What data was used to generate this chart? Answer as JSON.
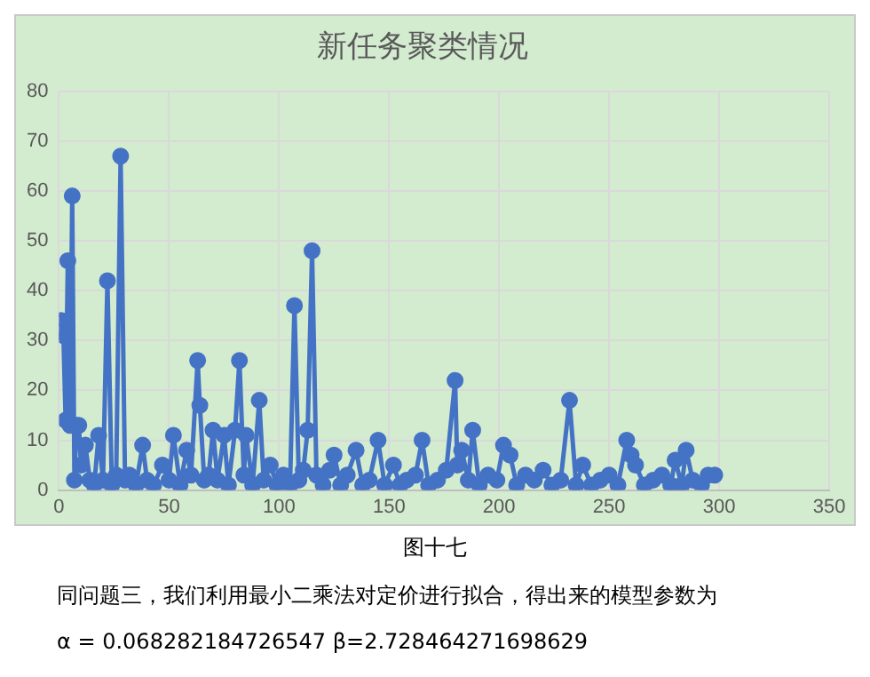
{
  "chart_data": {
    "type": "line",
    "title": "新任务聚类情况",
    "marker": "circle",
    "line_style": "solid",
    "grid": true,
    "legend": false,
    "xlim": [
      0,
      350
    ],
    "xticks": [
      0,
      50,
      100,
      150,
      200,
      250,
      300,
      350
    ],
    "ylim": [
      0,
      80
    ],
    "yticks": [
      0,
      10,
      20,
      30,
      40,
      50,
      60,
      70,
      80
    ],
    "series": [
      {
        "color": "#4472c4",
        "x": [
          1,
          2,
          3,
          4,
          5,
          6,
          7,
          8,
          9,
          10,
          12,
          14,
          16,
          18,
          20,
          22,
          24,
          26,
          28,
          30,
          32,
          35,
          38,
          40,
          43,
          47,
          50,
          52,
          55,
          58,
          60,
          63,
          64,
          66,
          68,
          70,
          72,
          75,
          77,
          80,
          82,
          84,
          85,
          88,
          91,
          93,
          96,
          99,
          102,
          105,
          107,
          109,
          111,
          113,
          115,
          117,
          120,
          123,
          125,
          128,
          131,
          135,
          138,
          141,
          145,
          148,
          152,
          155,
          158,
          162,
          165,
          168,
          172,
          176,
          180,
          181,
          183,
          186,
          188,
          191,
          195,
          199,
          202,
          205,
          208,
          212,
          216,
          220,
          224,
          228,
          232,
          235,
          238,
          242,
          246,
          250,
          254,
          258,
          260,
          262,
          266,
          270,
          274,
          278,
          280,
          283,
          285,
          288,
          292,
          295,
          298
        ],
        "values": [
          34,
          31,
          14,
          46,
          13,
          59,
          2,
          13,
          13,
          5,
          9,
          2,
          1,
          11,
          2,
          42,
          1,
          3,
          67,
          2,
          3,
          1,
          9,
          2,
          1,
          5,
          2,
          11,
          1,
          8,
          3,
          26,
          17,
          2,
          3,
          12,
          2,
          11,
          1,
          12,
          26,
          3,
          11,
          1,
          18,
          2,
          5,
          1,
          3,
          1,
          37,
          2,
          4,
          12,
          48,
          3,
          1,
          4,
          7,
          1,
          3,
          8,
          1,
          2,
          10,
          1,
          5,
          1,
          2,
          3,
          10,
          1,
          2,
          4,
          22,
          5,
          8,
          2,
          12,
          1,
          3,
          2,
          9,
          7,
          1,
          3,
          2,
          4,
          1,
          2,
          18,
          1,
          5,
          1,
          2,
          3,
          1,
          10,
          7,
          5,
          1,
          2,
          3,
          1,
          6,
          1,
          8,
          2,
          1,
          3,
          3
        ]
      }
    ],
    "annotations": [
      "图十七",
      "同问题三，我们利用最小二乘法对定价进行拟合，得出来的模型参数为",
      "α = 0.068282184726547  β=2.728464271698629"
    ]
  }
}
